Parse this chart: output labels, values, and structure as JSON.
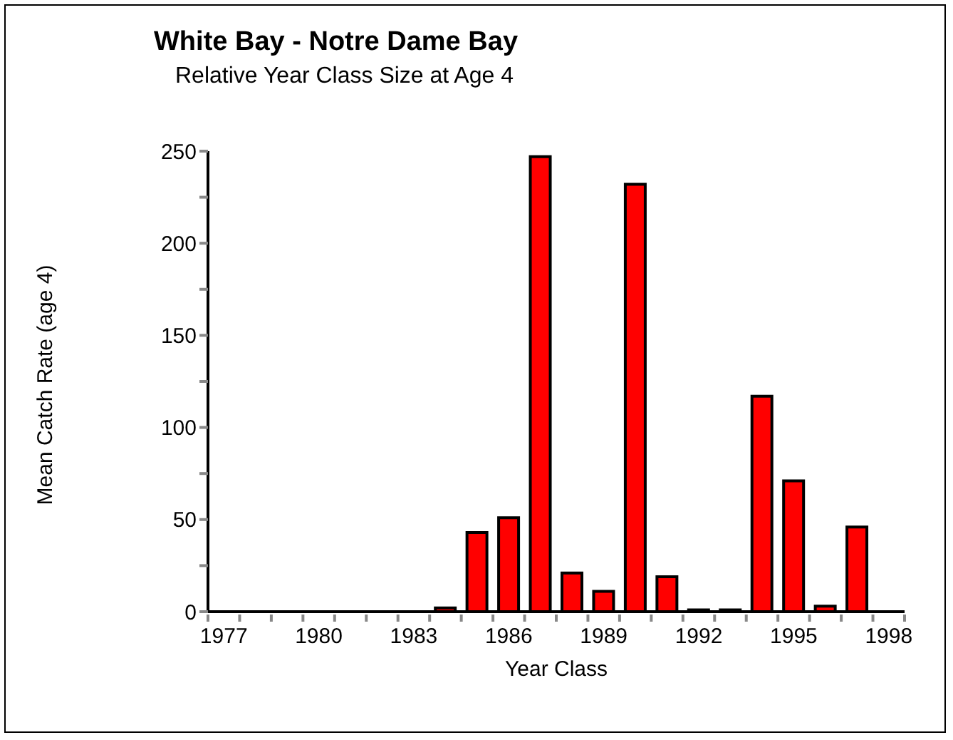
{
  "chart_data": {
    "type": "bar",
    "title": "White Bay - Notre Dame Bay",
    "subtitle": "Relative Year Class Size at Age 4",
    "xlabel": "Year Class",
    "ylabel": "Mean Catch Rate (age 4)",
    "categories": [
      "1977",
      null,
      null,
      "1980",
      null,
      null,
      "1983",
      null,
      null,
      "1986",
      null,
      null,
      "1989",
      null,
      null,
      "1992",
      null,
      null,
      "1995",
      null,
      null,
      "1998"
    ],
    "values": [
      null,
      null,
      null,
      null,
      null,
      null,
      null,
      2,
      43,
      51,
      247,
      21,
      11,
      232,
      19,
      1,
      1,
      117,
      71,
      3,
      46,
      null
    ],
    "color": "#ff0000",
    "ylim": [
      0,
      250
    ],
    "yticks": [
      0,
      {
        "value": 25,
        "label": null
      },
      50,
      {
        "value": 75,
        "label": null
      },
      100,
      {
        "value": 125,
        "label": null
      },
      150,
      {
        "value": 175,
        "label": null
      },
      200,
      {
        "value": 225,
        "label": null
      },
      250
    ],
    "grid": false,
    "legend": false
  }
}
